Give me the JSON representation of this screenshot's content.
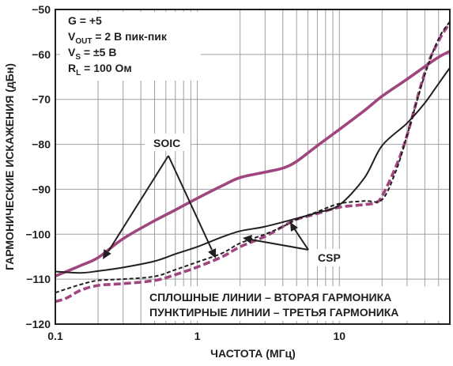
{
  "chart_data": {
    "type": "line",
    "title": "",
    "xlabel": "ЧАСТОТА (МГц)",
    "ylabel": "ГАРМОНИЧЕСКИЕ ИСКАЖЕНИЯ (дБн)",
    "x_scale": "log",
    "xlim": [
      0.1,
      60
    ],
    "ylim": [
      -120,
      -50
    ],
    "x_tick_labels": [
      {
        "value": 0.1,
        "label": "0.1"
      },
      {
        "value": 1,
        "label": "1"
      },
      {
        "value": 10,
        "label": "10"
      }
    ],
    "y_ticks": [
      -50,
      -60,
      -70,
      -80,
      -90,
      -100,
      -110,
      -120
    ],
    "grid": true,
    "conditions": {
      "line1": "G = +5",
      "line2_main": "V",
      "line2_sub": "OUT",
      "line2_rest": " = 2 В пик-пик",
      "line3_main": "V",
      "line3_sub": "S",
      "line3_rest": " = ±5 В",
      "line4_main": "R",
      "line4_sub": "L",
      "line4_rest": " = 100 Ом"
    },
    "legend_notes": [
      "СПЛОШНЫЕ ЛИНИИ – ВТОРАЯ ГАРМОНИКА",
      "ПУНКТИРНЫЕ ЛИНИИ – ТРЕТЬЯ ГАРМОНИКА"
    ],
    "annotations": {
      "soic": "SOIC",
      "csp": "CSP"
    },
    "series": [
      {
        "package": "SOIC",
        "harmonic": "second",
        "style": "solid",
        "color": "#a0467f",
        "points": [
          [
            0.1,
            -109.3
          ],
          [
            0.15,
            -107.0
          ],
          [
            0.2,
            -105.2
          ],
          [
            0.3,
            -101.0
          ],
          [
            0.5,
            -97.0
          ],
          [
            0.7,
            -94.6
          ],
          [
            1,
            -92.0
          ],
          [
            1.5,
            -89.2
          ],
          [
            2,
            -87.4
          ],
          [
            3,
            -86.2
          ],
          [
            4,
            -85.3
          ],
          [
            5,
            -83.8
          ],
          [
            7,
            -80.3
          ],
          [
            10,
            -76.7
          ],
          [
            15,
            -72.5
          ],
          [
            20,
            -69.3
          ],
          [
            30,
            -65.5
          ],
          [
            40,
            -62.7
          ],
          [
            50,
            -60.6
          ],
          [
            60,
            -59.3
          ]
        ]
      },
      {
        "package": "SOIC",
        "harmonic": "third",
        "style": "dashed",
        "color": "#a0467f",
        "points": [
          [
            0.1,
            -115.0
          ],
          [
            0.12,
            -114.2
          ],
          [
            0.15,
            -112.5
          ],
          [
            0.2,
            -111.4
          ],
          [
            0.3,
            -111.0
          ],
          [
            0.5,
            -110.3
          ],
          [
            0.7,
            -109.0
          ],
          [
            1,
            -107.3
          ],
          [
            1.5,
            -105.0
          ],
          [
            2,
            -102.8
          ],
          [
            3,
            -100.5
          ],
          [
            4,
            -98.3
          ],
          [
            5,
            -96.7
          ],
          [
            7,
            -95.4
          ],
          [
            10,
            -94.0
          ],
          [
            15,
            -93.4
          ],
          [
            18,
            -93.0
          ],
          [
            20,
            -91.5
          ],
          [
            25,
            -85.0
          ],
          [
            30,
            -78.0
          ],
          [
            40,
            -64.0
          ],
          [
            50,
            -57.0
          ],
          [
            60,
            -53.0
          ]
        ]
      },
      {
        "package": "CSP",
        "harmonic": "second",
        "style": "solid",
        "color": "#231f20",
        "points": [
          [
            0.1,
            -108.3
          ],
          [
            0.15,
            -108.6
          ],
          [
            0.2,
            -108.2
          ],
          [
            0.3,
            -107.4
          ],
          [
            0.5,
            -106.0
          ],
          [
            0.7,
            -104.4
          ],
          [
            1,
            -102.8
          ],
          [
            1.5,
            -100.6
          ],
          [
            2,
            -99.3
          ],
          [
            3,
            -98.3
          ],
          [
            5,
            -96.5
          ],
          [
            7,
            -95.2
          ],
          [
            10,
            -93.5
          ],
          [
            15,
            -87.5
          ],
          [
            20,
            -80.3
          ],
          [
            30,
            -75.3
          ],
          [
            40,
            -70.8
          ],
          [
            50,
            -66.5
          ],
          [
            60,
            -63.0
          ]
        ]
      },
      {
        "package": "CSP",
        "harmonic": "third",
        "style": "dashed",
        "color": "#231f20",
        "points": [
          [
            0.1,
            -113.0
          ],
          [
            0.15,
            -111.2
          ],
          [
            0.2,
            -110.3
          ],
          [
            0.3,
            -110.0
          ],
          [
            0.5,
            -109.4
          ],
          [
            0.7,
            -107.9
          ],
          [
            1,
            -106.2
          ],
          [
            1.5,
            -104.2
          ],
          [
            2,
            -102.0
          ],
          [
            3,
            -100.0
          ],
          [
            4,
            -98.3
          ],
          [
            5,
            -96.7
          ],
          [
            7,
            -95.0
          ],
          [
            10,
            -93.2
          ],
          [
            15,
            -92.6
          ],
          [
            20,
            -92.3
          ],
          [
            25,
            -86.0
          ],
          [
            30,
            -78.0
          ],
          [
            40,
            -64.5
          ],
          [
            50,
            -56.5
          ],
          [
            60,
            -52.7
          ]
        ]
      }
    ]
  }
}
